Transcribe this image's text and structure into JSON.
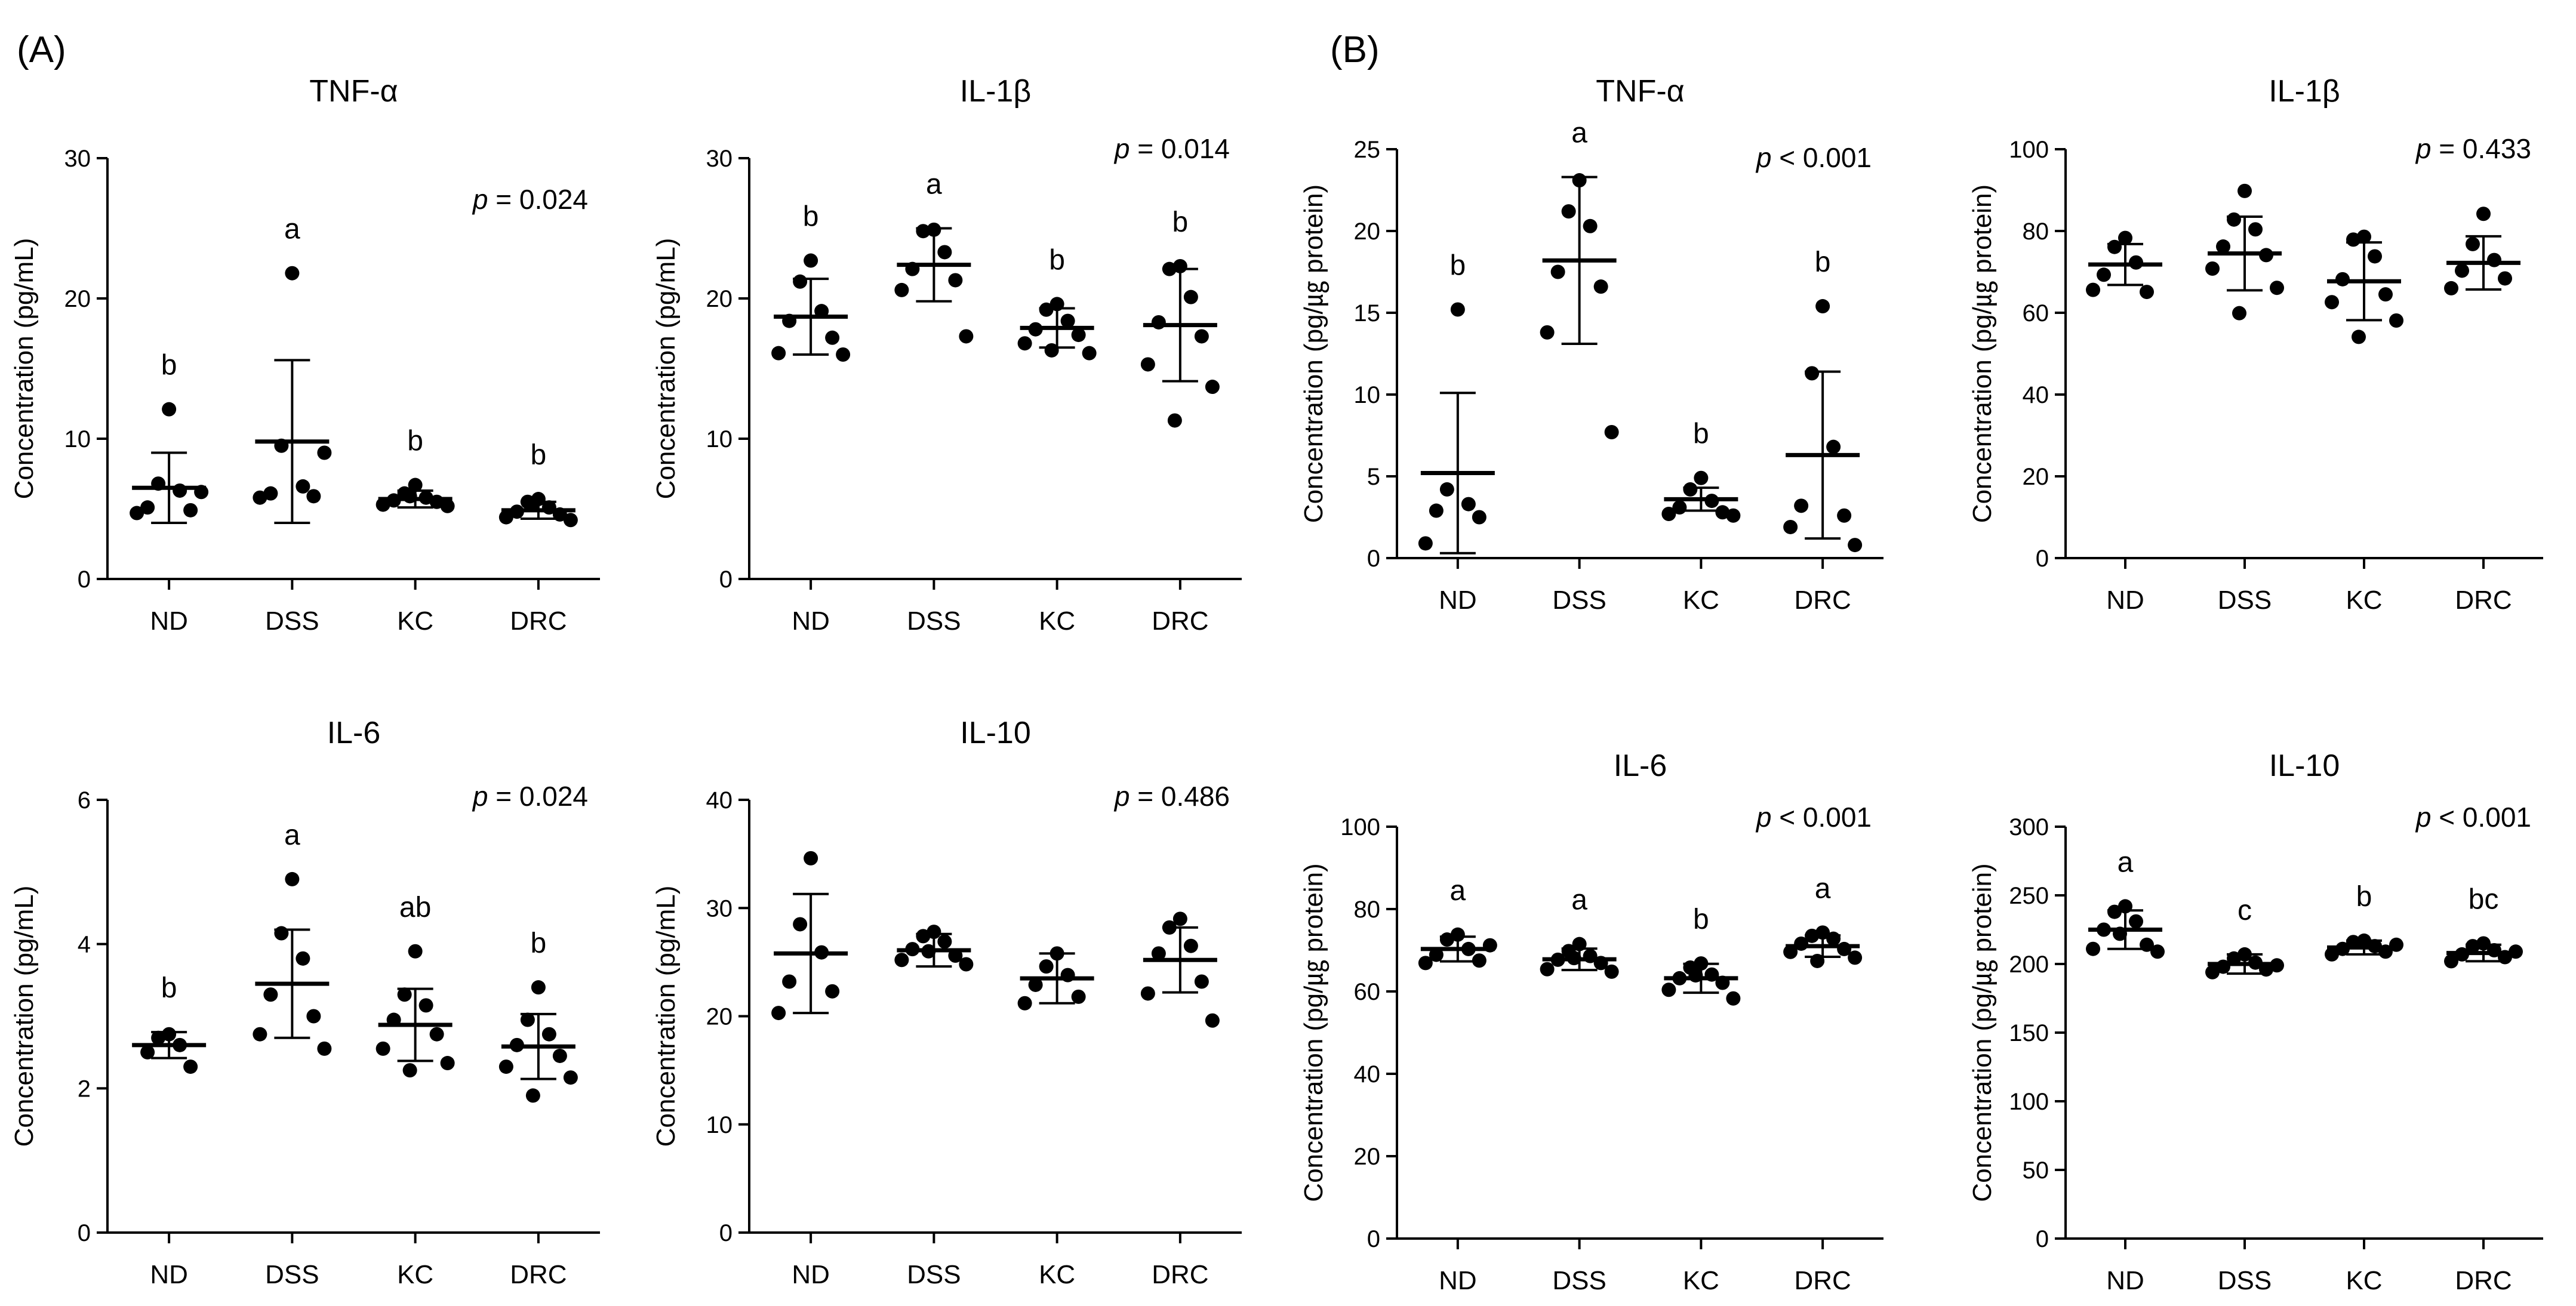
{
  "figure": {
    "panel_labels": [
      "(A)",
      "(B)"
    ]
  },
  "chart_data": [
    {
      "type": "scatter",
      "panel": "(A)",
      "title": "TNF-α",
      "ylabel": "Concentration (pg/mL)",
      "ylim": [
        0,
        30
      ],
      "yticks": [
        0,
        10,
        20,
        30
      ],
      "categories": [
        "ND",
        "DSS",
        "KC",
        "DRC"
      ],
      "p_prefix": "p",
      "p_text": "= 0.024",
      "letters": [
        "b",
        "a",
        "b",
        "b"
      ],
      "means": [
        6.5,
        9.8,
        5.7,
        4.9
      ],
      "sd": [
        2.5,
        5.8,
        0.6,
        0.6
      ],
      "points": [
        [
          12.1,
          6.8,
          6.3,
          5.1,
          4.9,
          4.7,
          6.2
        ],
        [
          21.8,
          9.5,
          6.6,
          6.1,
          5.9,
          5.8,
          9.0
        ],
        [
          6.7,
          6.1,
          5.8,
          5.6,
          5.5,
          5.3,
          5.2,
          5.9
        ],
        [
          5.7,
          5.5,
          5.1,
          4.8,
          4.6,
          4.4,
          4.2,
          5.4
        ]
      ]
    },
    {
      "type": "scatter",
      "panel": "(A)",
      "title": "IL-1β",
      "ylabel": "Concentration (pg/mL)",
      "ylim": [
        0,
        30
      ],
      "yticks": [
        0,
        10,
        20,
        30
      ],
      "categories": [
        "ND",
        "DSS",
        "KC",
        "DRC"
      ],
      "p_prefix": "p",
      "p_text": "= 0.014",
      "letters": [
        "b",
        "a",
        "b",
        "b"
      ],
      "means": [
        18.7,
        22.4,
        17.9,
        18.1
      ],
      "sd": [
        2.7,
        2.6,
        1.4,
        4.0
      ],
      "points": [
        [
          22.7,
          21.2,
          19.1,
          18.4,
          17.2,
          16.1,
          16.0
        ],
        [
          24.9,
          24.8,
          23.3,
          22.1,
          21.3,
          20.6,
          17.3
        ],
        [
          19.6,
          19.2,
          18.4,
          17.8,
          17.4,
          16.8,
          16.1,
          16.3
        ],
        [
          22.3,
          22.1,
          20.1,
          18.3,
          17.3,
          15.3,
          13.7,
          11.3
        ]
      ]
    },
    {
      "type": "scatter",
      "panel": "(A)",
      "title": "IL-6",
      "ylabel": "Concentration (pg/mL)",
      "ylim": [
        0,
        6
      ],
      "yticks": [
        0,
        2,
        4,
        6
      ],
      "categories": [
        "ND",
        "DSS",
        "KC",
        "DRC"
      ],
      "p_prefix": "p",
      "p_text": "= 0.024",
      "letters": [
        "b",
        "a",
        "ab",
        "b"
      ],
      "means": [
        2.6,
        3.45,
        2.88,
        2.58
      ],
      "sd": [
        0.18,
        0.75,
        0.5,
        0.45
      ],
      "points": [
        [
          2.75,
          2.7,
          2.6,
          2.5,
          2.3
        ],
        [
          4.9,
          4.15,
          3.8,
          3.3,
          3.0,
          2.75,
          2.55
        ],
        [
          3.9,
          3.3,
          3.15,
          2.95,
          2.75,
          2.55,
          2.35,
          2.25
        ],
        [
          3.4,
          2.95,
          2.75,
          2.6,
          2.45,
          2.3,
          2.15,
          1.9
        ]
      ]
    },
    {
      "type": "scatter",
      "panel": "(A)",
      "title": "IL-10",
      "ylabel": "Concentration (pg/mL)",
      "ylim": [
        0,
        40
      ],
      "yticks": [
        0,
        10,
        20,
        30,
        40
      ],
      "categories": [
        "ND",
        "DSS",
        "KC",
        "DRC"
      ],
      "p_prefix": "p",
      "p_text": "= 0.486",
      "letters": [
        "",
        "",
        "",
        ""
      ],
      "means": [
        25.8,
        26.1,
        23.5,
        25.2
      ],
      "sd": [
        5.5,
        1.5,
        2.3,
        3.0
      ],
      "points": [
        [
          34.6,
          28.5,
          25.9,
          23.2,
          22.3,
          20.3
        ],
        [
          27.8,
          27.4,
          26.9,
          26.2,
          25.6,
          25.2,
          24.8,
          26.0
        ],
        [
          25.8,
          24.6,
          23.8,
          22.9,
          21.8,
          21.2
        ],
        [
          29.0,
          28.2,
          26.5,
          25.8,
          23.2,
          22.1,
          19.6
        ]
      ]
    },
    {
      "type": "scatter",
      "panel": "(B)",
      "title": "TNF-α",
      "ylabel": "Concentration (pg/㎍ protein)",
      "ylim": [
        0,
        25
      ],
      "yticks": [
        0,
        5,
        10,
        15,
        20,
        25
      ],
      "categories": [
        "ND",
        "DSS",
        "KC",
        "DRC"
      ],
      "p_prefix": "p",
      "p_text": "< 0.001",
      "letters": [
        "b",
        "a",
        "b",
        "b"
      ],
      "means": [
        5.2,
        18.2,
        3.6,
        6.3
      ],
      "sd": [
        4.9,
        5.1,
        0.7,
        5.1
      ],
      "points": [
        [
          15.2,
          4.2,
          3.3,
          2.9,
          2.5,
          0.9
        ],
        [
          23.1,
          21.2,
          20.3,
          17.5,
          16.6,
          13.8,
          7.7
        ],
        [
          4.9,
          4.2,
          3.5,
          3.1,
          2.8,
          2.7,
          2.6
        ],
        [
          15.4,
          11.3,
          6.8,
          3.2,
          2.6,
          1.9,
          0.8
        ]
      ]
    },
    {
      "type": "scatter",
      "panel": "(B)",
      "title": "IL-1β",
      "ylabel": "Concentration (pg/㎍ protein)",
      "ylim": [
        0,
        100
      ],
      "yticks": [
        0,
        20,
        40,
        60,
        80,
        100
      ],
      "categories": [
        "ND",
        "DSS",
        "KC",
        "DRC"
      ],
      "p_prefix": "p",
      "p_text": "= 0.433",
      "letters": [
        "",
        "",
        "",
        ""
      ],
      "means": [
        71.8,
        74.5,
        67.7,
        72.2
      ],
      "sd": [
        5.0,
        9.0,
        9.5,
        6.5
      ],
      "points": [
        [
          78.3,
          76.1,
          72.3,
          69.3,
          65.1,
          65.6
        ],
        [
          89.8,
          82.8,
          80.4,
          76.2,
          74.1,
          70.8,
          66.1,
          59.9
        ],
        [
          78.6,
          77.9,
          73.8,
          68.2,
          64.5,
          62.6,
          58.1,
          54.1
        ],
        [
          84.2,
          76.8,
          72.9,
          70.3,
          68.4,
          66.0
        ]
      ]
    },
    {
      "type": "scatter",
      "panel": "(B)",
      "title": "IL-6",
      "ylabel": "Concentration (pg/㎍ protein)",
      "ylim": [
        0,
        100
      ],
      "yticks": [
        0,
        20,
        40,
        60,
        80,
        100
      ],
      "categories": [
        "ND",
        "DSS",
        "KC",
        "DRC"
      ],
      "p_prefix": "p",
      "p_text": "< 0.001",
      "letters": [
        "a",
        "a",
        "b",
        "a"
      ],
      "means": [
        70.3,
        67.8,
        63.2,
        71.0
      ],
      "sd": [
        3.0,
        2.6,
        3.5,
        2.6
      ],
      "points": [
        [
          73.8,
          72.6,
          70.3,
          68.9,
          67.5,
          66.9,
          71.2
        ],
        [
          71.5,
          69.8,
          68.6,
          67.7,
          66.9,
          65.4,
          64.8,
          68.1
        ],
        [
          66.8,
          65.8,
          64.1,
          63.2,
          62.1,
          60.4,
          58.3,
          63.9
        ],
        [
          74.3,
          73.5,
          72.8,
          71.6,
          70.3,
          69.6,
          68.2,
          67.4
        ]
      ]
    },
    {
      "type": "scatter",
      "panel": "(B)",
      "title": "IL-10",
      "ylabel": "Concentration (pg/㎍ protein)",
      "ylim": [
        0,
        300
      ],
      "yticks": [
        0,
        50,
        100,
        150,
        200,
        250,
        300
      ],
      "categories": [
        "ND",
        "DSS",
        "KC",
        "DRC"
      ],
      "p_prefix": "p",
      "p_text": "< 0.001",
      "letters": [
        "a",
        "c",
        "b",
        "bc"
      ],
      "means": [
        225.0,
        200.0,
        212.0,
        208.0
      ],
      "sd": [
        14.0,
        7.0,
        5.0,
        6.0
      ],
      "points": [
        [
          242.0,
          238.0,
          231.0,
          225.0,
          214.0,
          211.0,
          209.0,
          222.0
        ],
        [
          207.0,
          204.0,
          201.0,
          198.0,
          196.0,
          194.0,
          199.0
        ],
        [
          217.0,
          216.0,
          213.0,
          211.0,
          209.0,
          207.0,
          214.0
        ],
        [
          215.0,
          213.0,
          210.0,
          207.0,
          205.0,
          202.0,
          209.0
        ]
      ]
    }
  ]
}
